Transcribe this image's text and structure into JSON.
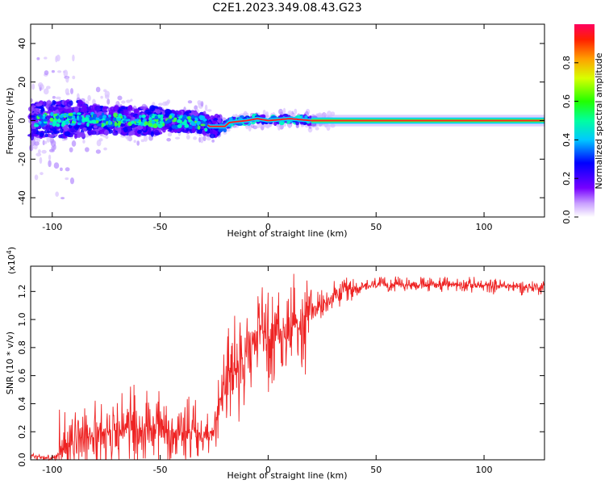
{
  "title": "C2E1.2023.349.08.43.G23",
  "colors": {
    "snr_line": "#ee2222",
    "spectral_line": "#ff2222"
  },
  "chart_data": [
    {
      "type": "heatmap",
      "xlabel": "Height of straight line (km)",
      "ylabel": "Frequency (Hz)",
      "xlim": [
        -110,
        128
      ],
      "ylim": [
        -50,
        50
      ],
      "xticks": [
        "-100",
        "-50",
        "0",
        "50",
        "100"
      ],
      "yticks": [
        "-40",
        "-20",
        "0",
        "20",
        "40"
      ],
      "colorbar": {
        "label": "Normalized spectral amplitude",
        "range": [
          0,
          1
        ],
        "ticks": [
          "0.0",
          "0.2",
          "0.4",
          "0.6",
          "0.8"
        ]
      },
      "ridge": [
        {
          "x": -110,
          "y": 0
        },
        {
          "x": -90,
          "y": 1
        },
        {
          "x": -70,
          "y": 0
        },
        {
          "x": -50,
          "y": 0
        },
        {
          "x": -30,
          "y": -1
        },
        {
          "x": -27,
          "y": -3
        },
        {
          "x": -20,
          "y": -3
        },
        {
          "x": -18,
          "y": -1
        },
        {
          "x": -10,
          "y": 0
        },
        {
          "x": -5,
          "y": 1
        },
        {
          "x": 0,
          "y": 0
        },
        {
          "x": 10,
          "y": 1
        },
        {
          "x": 20,
          "y": 0
        },
        {
          "x": 128,
          "y": 0
        }
      ]
    },
    {
      "type": "line",
      "xlabel": "Height of straight line (km)",
      "ylabel": "SNR (10 * v/v)",
      "yscale_label": "(x10",
      "yscale_exp": "4",
      "xlim": [
        -110,
        128
      ],
      "ylim": [
        0,
        1.38
      ],
      "xticks": [
        "-100",
        "-50",
        "0",
        "50",
        "100"
      ],
      "yticks": [
        "0.0",
        "0.2",
        "0.4",
        "0.6",
        "0.8",
        "1.0",
        "1.2"
      ],
      "series": [
        {
          "x": [
            -110,
            -100,
            -95,
            -90,
            -80,
            -70,
            -60,
            -50,
            -40,
            -30,
            -25,
            -22,
            -20,
            -18,
            -15,
            -12,
            -10,
            -5,
            0,
            5,
            10,
            15,
            20,
            25,
            30,
            35,
            40,
            50,
            60,
            70,
            80,
            90,
            100,
            110,
            120,
            128
          ],
          "y": [
            0.03,
            0.01,
            0.06,
            0.15,
            0.2,
            0.22,
            0.22,
            0.22,
            0.2,
            0.18,
            0.22,
            0.45,
            0.55,
            0.6,
            0.65,
            0.7,
            0.8,
            0.85,
            0.9,
            0.95,
            0.9,
            1.0,
            1.05,
            1.1,
            1.15,
            1.2,
            1.22,
            1.25,
            1.25,
            1.25,
            1.25,
            1.25,
            1.24,
            1.24,
            1.23,
            1.23
          ]
        }
      ]
    }
  ]
}
